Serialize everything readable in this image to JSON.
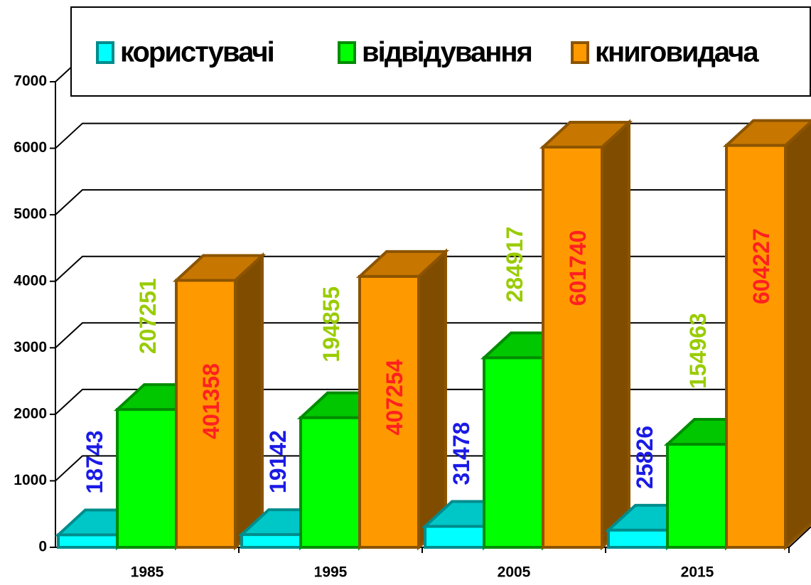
{
  "chart_data": {
    "type": "bar3d",
    "categories": [
      "1985",
      "1995",
      "2005",
      "2015"
    ],
    "series": [
      {
        "name": "користувачі",
        "color": "#00ffff",
        "label_color": "#1a1ae6",
        "values": [
          187.43,
          191.42,
          314.78,
          258.26
        ],
        "value_labels": [
          "18743",
          "19142",
          "31478",
          "25826"
        ]
      },
      {
        "name": "відвідування",
        "color": "#00ff00",
        "label_color": "#99cc00",
        "values": [
          2072.51,
          1948.55,
          2849.17,
          1549.63
        ],
        "value_labels": [
          "207251",
          "194855",
          "284917",
          "154963"
        ]
      },
      {
        "name": "книговидача",
        "color": "#ff9900",
        "label_color": "#ff2020",
        "values": [
          4013.58,
          4072.54,
          6017.4,
          6042.27
        ],
        "value_labels": [
          "401358",
          "407254",
          "601740",
          "604227"
        ]
      }
    ],
    "ylim": [
      0,
      7000
    ],
    "yticks": [
      0,
      1000,
      2000,
      3000,
      4000,
      5000,
      6000,
      7000
    ],
    "grid": true
  }
}
